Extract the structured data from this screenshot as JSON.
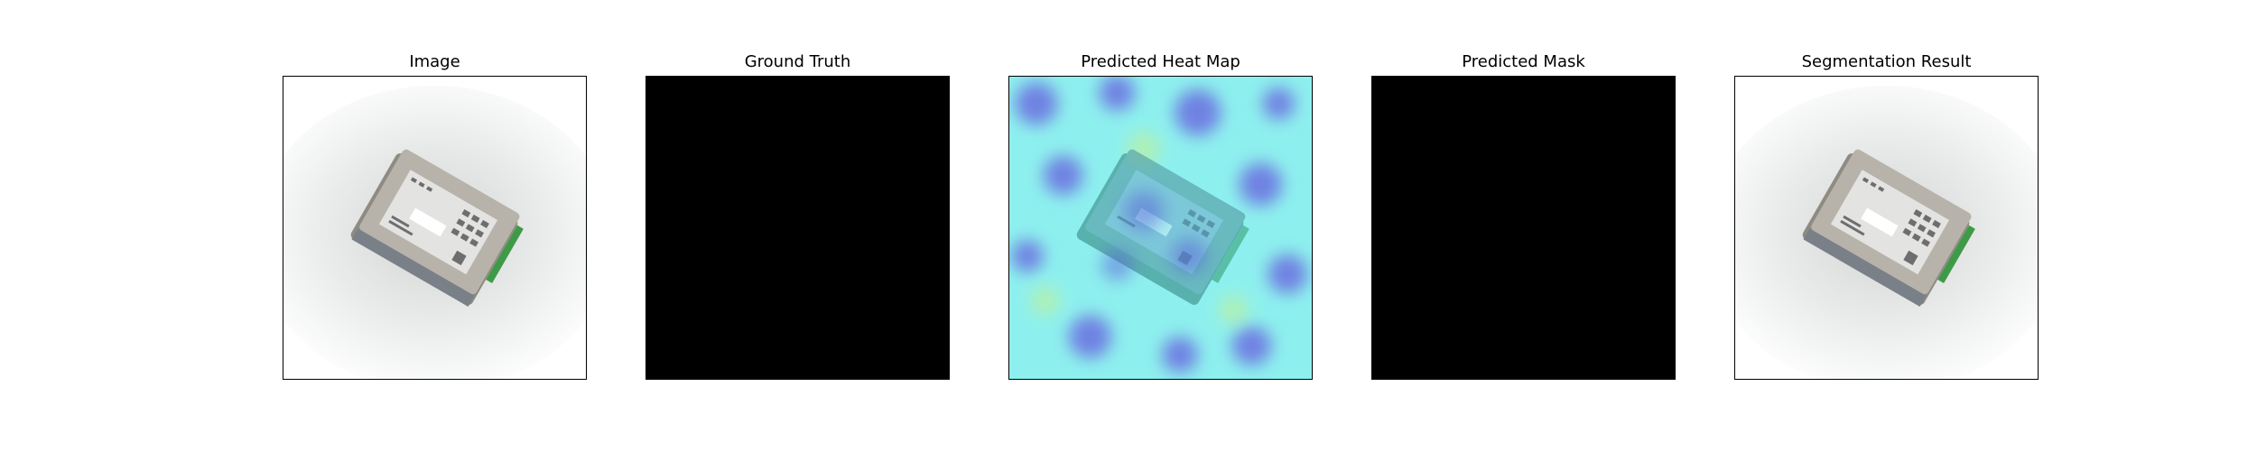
{
  "figure": {
    "panels": [
      {
        "title": "Image",
        "content": "photo"
      },
      {
        "title": "Ground Truth",
        "content": "black-mask"
      },
      {
        "title": "Predicted Heat Map",
        "content": "heatmap-overlay"
      },
      {
        "title": "Predicted Mask",
        "content": "black-mask"
      },
      {
        "title": "Segmentation Result",
        "content": "photo"
      }
    ]
  },
  "colors": {
    "frame": "#000000",
    "mask_background": "#000000",
    "photo_background": "#ffffff",
    "heatmap_cyan": "#8ef0ee",
    "heatmap_blue": "#6a6ee0",
    "heatmap_green": "#b6f0a8",
    "device_body": "#a9a49b",
    "device_label": "#e6e6e6",
    "terminal_green": "#3f9a47"
  }
}
